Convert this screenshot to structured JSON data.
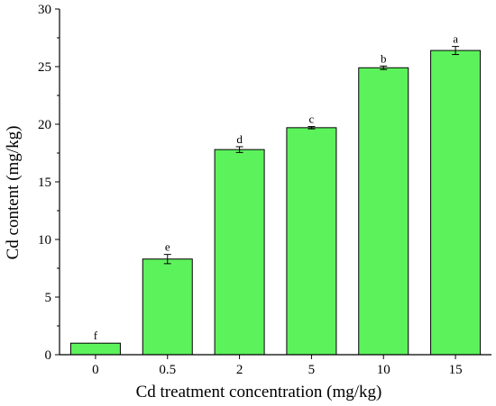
{
  "chart_data": {
    "type": "bar",
    "xlabel": "Cd treatment concentration (mg/kg)",
    "ylabel": "Cd content (mg/kg)",
    "categories": [
      "0",
      "0.5",
      "2",
      "5",
      "10",
      "15"
    ],
    "values": [
      1.0,
      8.3,
      17.8,
      19.7,
      24.9,
      26.4
    ],
    "error": [
      0.0,
      0.4,
      0.25,
      0.1,
      0.15,
      0.35
    ],
    "significance_letters": [
      "f",
      "e",
      "d",
      "c",
      "b",
      "a"
    ],
    "ylim": [
      0,
      30
    ],
    "yticks": [
      "0",
      "5",
      "10",
      "15",
      "20",
      "25",
      "30"
    ],
    "bar_color": "#5cf25c",
    "bar_edge_color": "#000000",
    "grid": false,
    "legend": false
  }
}
